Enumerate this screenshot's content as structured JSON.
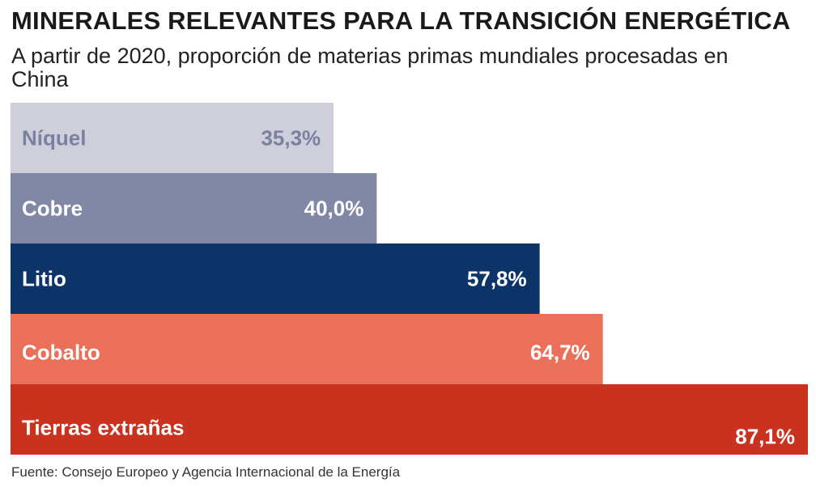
{
  "title": "MINERALES RELEVANTES PARA LA TRANSICIÓN ENERGÉTICA",
  "subtitle": "A partir de 2020, proporción de materias primas mundiales procesadas en China",
  "source": "Fuente: Consejo Europeo y Agencia Internacional de la Energía",
  "chart_data": {
    "type": "bar",
    "orientation": "horizontal",
    "categories": [
      "Níquel",
      "Cobre",
      "Litio",
      "Cobalto",
      "Tierras extrañas"
    ],
    "values": [
      35.3,
      40.0,
      57.8,
      64.7,
      87.1
    ],
    "value_labels": [
      "35,3%",
      "40,0%",
      "57,8%",
      "64,7%",
      "87,1%"
    ],
    "colors": [
      "#cfcfdb",
      "#8088a6",
      "#0d3468",
      "#eb705a",
      "#c9321e"
    ],
    "text_colors": [
      "#7a81a0",
      "#ffffff",
      "#ffffff",
      "#ffffff",
      "#ffffff"
    ],
    "grid": false,
    "legend": "none"
  }
}
